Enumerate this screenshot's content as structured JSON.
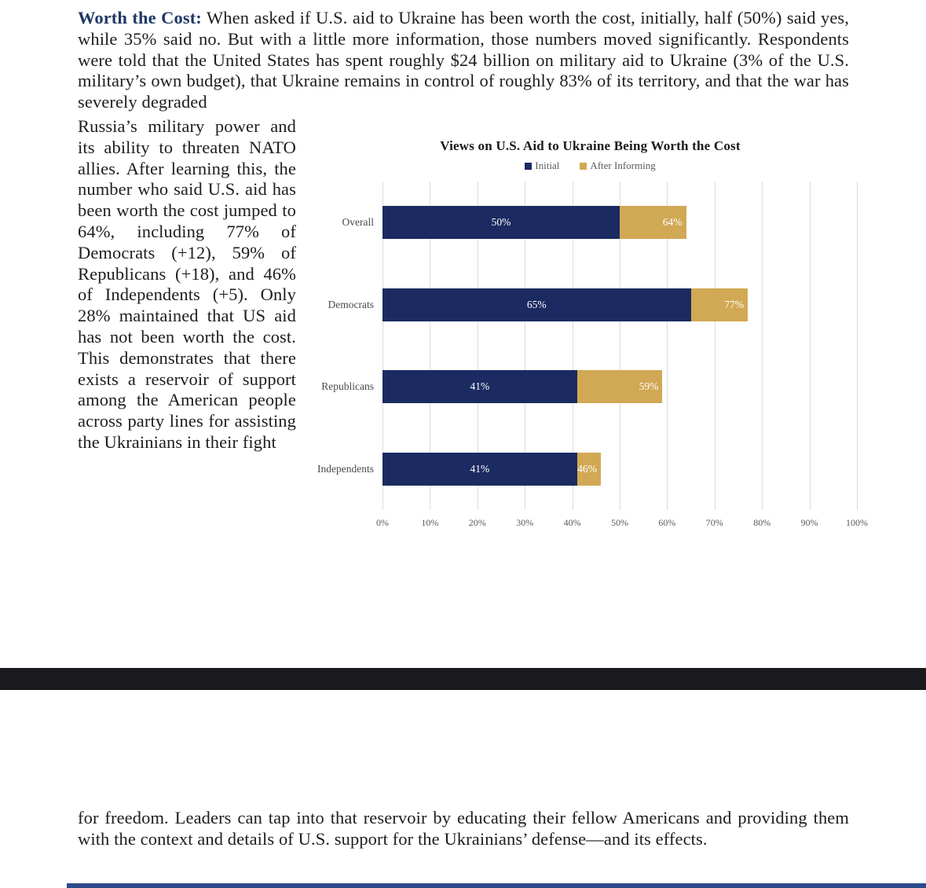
{
  "document": {
    "lead_label": "Worth the Cost:",
    "top_paragraph": " When asked if U.S. aid to Ukraine has been worth the cost, initially, half (50%) said yes, while 35% said no. But with a little more information, those numbers moved significantly. Respondents were told that the United States has spent roughly $24 billion on military aid to Ukraine (3% of the U.S. military’s own budget), that Ukraine remains in control of roughly 83% of its territory, and that the war has severely degraded",
    "left_column_paragraph": "Russia’s military power and its ability to threaten NATO allies. After learning this, the number who said U.S. aid has been worth the cost jumped to 64%, including 77% of Democrats (+12), 59% of Republicans (+18), and 46% of Independents (+5). Only 28% maintained that US aid has not been worth the cost. This demonstrates that there exists a reservoir of support among the American people across party lines for assisting the Ukrainians in their fight",
    "bottom_paragraph": "for freedom. Leaders can tap into that reservoir by educating their fellow Americans and providing them with the context and details of U.S. support for the Ukrainians’ defense—and its effects."
  },
  "chart_data": {
    "type": "bar",
    "orientation": "horizontal",
    "title": "Views on U.S. Aid to Ukraine Being Worth the Cost",
    "categories": [
      "Overall",
      "Democrats",
      "Republicans",
      "Independents"
    ],
    "series": [
      {
        "name": "Initial",
        "color": "#1b2a60",
        "values": [
          50,
          65,
          41,
          41
        ]
      },
      {
        "name": "After Informing",
        "color": "#d1a854",
        "values": [
          64,
          77,
          59,
          46
        ]
      }
    ],
    "value_labels": {
      "initial": [
        "50%",
        "65%",
        "41%",
        "41%"
      ],
      "after": [
        "64%",
        "77%",
        "59%",
        "46%"
      ]
    },
    "x_ticks": [
      "0%",
      "10%",
      "20%",
      "30%",
      "40%",
      "50%",
      "60%",
      "70%",
      "80%",
      "90%",
      "100%"
    ],
    "xlim": [
      0,
      100
    ],
    "grid": true,
    "legend_position": "top"
  },
  "colors": {
    "heading_navy": "#1f3864",
    "bar_navy": "#1b2a60",
    "bar_gold": "#d1a854",
    "axis_gray": "#595959",
    "gridline": "#dcdcdc",
    "black_band": "#1a1a1e",
    "bottom_strip_blue": "#2c4a88"
  }
}
